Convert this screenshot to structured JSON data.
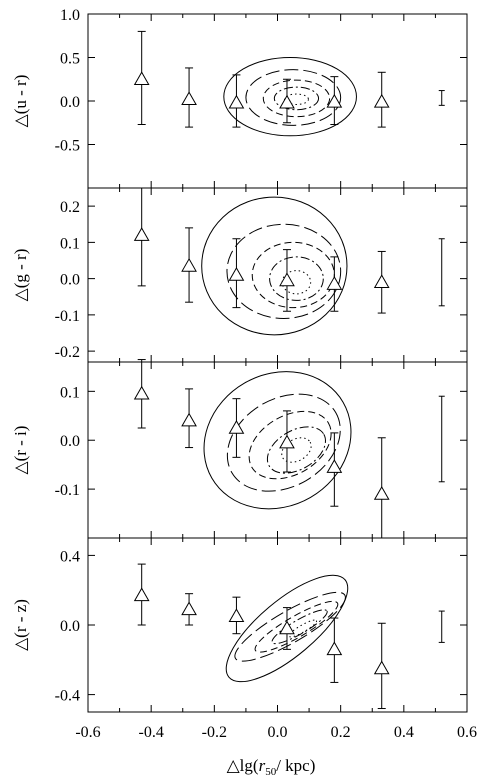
{
  "figure": {
    "xlabel_prefix": "△lg(",
    "xlabel_var": "r",
    "xlabel_sub": "50",
    "xlabel_suffix": "/ kpc)"
  },
  "chart_data": [
    {
      "type": "scatter",
      "ylabel": "△(u - r)",
      "xlim": [
        -0.6,
        0.6
      ],
      "ylim": [
        -1.0,
        1.0
      ],
      "yticks": [
        0.5,
        0.0,
        -0.5
      ],
      "ytick_labels": [
        "0.5",
        "0.0",
        "-0.5"
      ],
      "top_tick_label": "1.0",
      "points": [
        {
          "x": -0.43,
          "y": 0.25,
          "err_lo": -0.27,
          "err_hi": 0.8
        },
        {
          "x": -0.28,
          "y": 0.02,
          "err_lo": -0.3,
          "err_hi": 0.38
        },
        {
          "x": -0.13,
          "y": -0.02,
          "err_lo": -0.3,
          "err_hi": 0.3
        },
        {
          "x": 0.03,
          "y": -0.02,
          "err_lo": -0.25,
          "err_hi": 0.25
        },
        {
          "x": 0.18,
          "y": -0.01,
          "err_lo": -0.27,
          "err_hi": 0.28
        },
        {
          "x": 0.33,
          "y": -0.01,
          "err_lo": -0.3,
          "err_hi": 0.33
        }
      ],
      "reference_error": {
        "x": 0.52,
        "lo": -0.05,
        "hi": 0.12
      },
      "contours": [
        {
          "style": "solid",
          "cx": 0.04,
          "cy": 0.05,
          "rx": 0.21,
          "ry": 0.45
        },
        {
          "style": "long-dash",
          "cx": 0.05,
          "cy": 0.04,
          "rx": 0.15,
          "ry": 0.32
        },
        {
          "style": "dash",
          "cx": 0.06,
          "cy": 0.03,
          "rx": 0.105,
          "ry": 0.21
        },
        {
          "style": "dash-dot",
          "cx": 0.06,
          "cy": 0.03,
          "rx": 0.07,
          "ry": 0.13
        },
        {
          "style": "dot",
          "cx": 0.06,
          "cy": 0.02,
          "rx": 0.038,
          "ry": 0.06
        }
      ]
    },
    {
      "type": "scatter",
      "ylabel": "△(g - r)",
      "xlim": [
        -0.6,
        0.6
      ],
      "ylim": [
        -0.23,
        0.25
      ],
      "yticks": [
        0.2,
        0.1,
        0.0,
        -0.1,
        -0.2
      ],
      "ytick_labels": [
        "0.2",
        "0.1",
        "0.0",
        "-0.1",
        "-0.2"
      ],
      "points": [
        {
          "x": -0.43,
          "y": 0.12,
          "err_lo": -0.02,
          "err_hi": 0.25
        },
        {
          "x": -0.28,
          "y": 0.035,
          "err_lo": -0.065,
          "err_hi": 0.14
        },
        {
          "x": -0.13,
          "y": 0.01,
          "err_lo": -0.08,
          "err_hi": 0.11
        },
        {
          "x": 0.03,
          "y": -0.005,
          "err_lo": -0.09,
          "err_hi": 0.08
        },
        {
          "x": 0.18,
          "y": -0.015,
          "err_lo": -0.09,
          "err_hi": 0.06
        },
        {
          "x": 0.33,
          "y": -0.01,
          "err_lo": -0.095,
          "err_hi": 0.075
        }
      ],
      "reference_error": {
        "x": 0.52,
        "lo": -0.075,
        "hi": 0.11
      },
      "contours": [
        {
          "style": "solid",
          "cx": -0.01,
          "cy": 0.035,
          "rx": 0.23,
          "ry": 0.19
        },
        {
          "style": "long-dash",
          "cx": 0.02,
          "cy": 0.02,
          "rx": 0.18,
          "ry": 0.13
        },
        {
          "style": "dash",
          "cx": 0.05,
          "cy": 0.01,
          "rx": 0.13,
          "ry": 0.09
        },
        {
          "style": "dash-dot",
          "cx": 0.06,
          "cy": 0.0,
          "rx": 0.085,
          "ry": 0.06
        },
        {
          "style": "dot",
          "cx": 0.06,
          "cy": -0.01,
          "rx": 0.045,
          "ry": 0.032
        }
      ]
    },
    {
      "type": "scatter",
      "ylabel": "△(r - i)",
      "xlim": [
        -0.6,
        0.6
      ],
      "ylim": [
        -0.2,
        0.16
      ],
      "yticks": [
        0.1,
        0.0,
        -0.1
      ],
      "ytick_labels": [
        "0.1",
        "0.0",
        "-0.1"
      ],
      "points": [
        {
          "x": -0.43,
          "y": 0.095,
          "err_lo": 0.025,
          "err_hi": 0.165
        },
        {
          "x": -0.28,
          "y": 0.04,
          "err_lo": -0.015,
          "err_hi": 0.105
        },
        {
          "x": -0.13,
          "y": 0.025,
          "err_lo": -0.035,
          "err_hi": 0.085
        },
        {
          "x": 0.03,
          "y": -0.005,
          "err_lo": -0.065,
          "err_hi": 0.06
        },
        {
          "x": 0.18,
          "y": -0.055,
          "err_lo": -0.135,
          "err_hi": 0.015
        },
        {
          "x": 0.33,
          "y": -0.11,
          "err_lo": -0.2,
          "err_hi": 0.005
        }
      ],
      "reference_error": {
        "x": 0.52,
        "lo": -0.085,
        "hi": 0.09
      },
      "contours": [
        {
          "style": "solid",
          "cx": 0.0,
          "cy": 0.0,
          "rx": 0.24,
          "ry": 0.135,
          "rot": -30
        },
        {
          "style": "long-dash",
          "cx": 0.02,
          "cy": -0.005,
          "rx": 0.19,
          "ry": 0.09,
          "rot": -30
        },
        {
          "style": "dash",
          "cx": 0.04,
          "cy": -0.01,
          "rx": 0.14,
          "ry": 0.06,
          "rot": -30
        },
        {
          "style": "dash-dot",
          "cx": 0.06,
          "cy": -0.02,
          "rx": 0.1,
          "ry": 0.04,
          "rot": -30
        },
        {
          "style": "dot",
          "cx": 0.06,
          "cy": -0.02,
          "rx": 0.05,
          "ry": 0.022,
          "rot": -30
        }
      ]
    },
    {
      "type": "scatter",
      "ylabel": "△(r - z)",
      "xlim": [
        -0.6,
        0.6
      ],
      "ylim": [
        -0.5,
        0.5
      ],
      "yticks": [
        0.4,
        0.0,
        -0.4
      ],
      "ytick_labels": [
        "0.4",
        "0.0",
        "-0.4"
      ],
      "points": [
        {
          "x": -0.43,
          "y": 0.17,
          "err_lo": 0.0,
          "err_hi": 0.35
        },
        {
          "x": -0.28,
          "y": 0.09,
          "err_lo": 0.0,
          "err_hi": 0.18
        },
        {
          "x": -0.13,
          "y": 0.05,
          "err_lo": -0.05,
          "err_hi": 0.16
        },
        {
          "x": 0.03,
          "y": -0.02,
          "err_lo": -0.14,
          "err_hi": 0.1
        },
        {
          "x": 0.18,
          "y": -0.14,
          "err_lo": -0.33,
          "err_hi": 0.04
        },
        {
          "x": 0.33,
          "y": -0.25,
          "err_lo": -0.48,
          "err_hi": 0.01
        }
      ],
      "reference_error": {
        "x": 0.52,
        "lo": -0.1,
        "hi": 0.08
      },
      "contours": [
        {
          "style": "solid",
          "cx": 0.03,
          "cy": -0.02,
          "rx": 0.24,
          "ry": 0.16,
          "rot": -40
        },
        {
          "style": "long-dash",
          "cx": 0.04,
          "cy": -0.01,
          "rx": 0.2,
          "ry": 0.09,
          "rot": -30
        },
        {
          "style": "dash",
          "cx": 0.06,
          "cy": -0.01,
          "rx": 0.15,
          "ry": 0.06,
          "rot": -30
        },
        {
          "style": "dash-dot",
          "cx": 0.07,
          "cy": -0.01,
          "rx": 0.1,
          "ry": 0.04,
          "rot": -30
        },
        {
          "style": "dot",
          "cx": 0.08,
          "cy": -0.02,
          "rx": 0.05,
          "ry": 0.02,
          "rot": -30
        }
      ]
    }
  ],
  "x_axis": {
    "ticks": [
      -0.6,
      -0.4,
      -0.2,
      0.0,
      0.2,
      0.4,
      0.6
    ],
    "tick_labels": [
      "-0.6",
      "-0.4",
      "-0.2",
      "0.0",
      "0.2",
      "0.4",
      "0.6"
    ]
  }
}
